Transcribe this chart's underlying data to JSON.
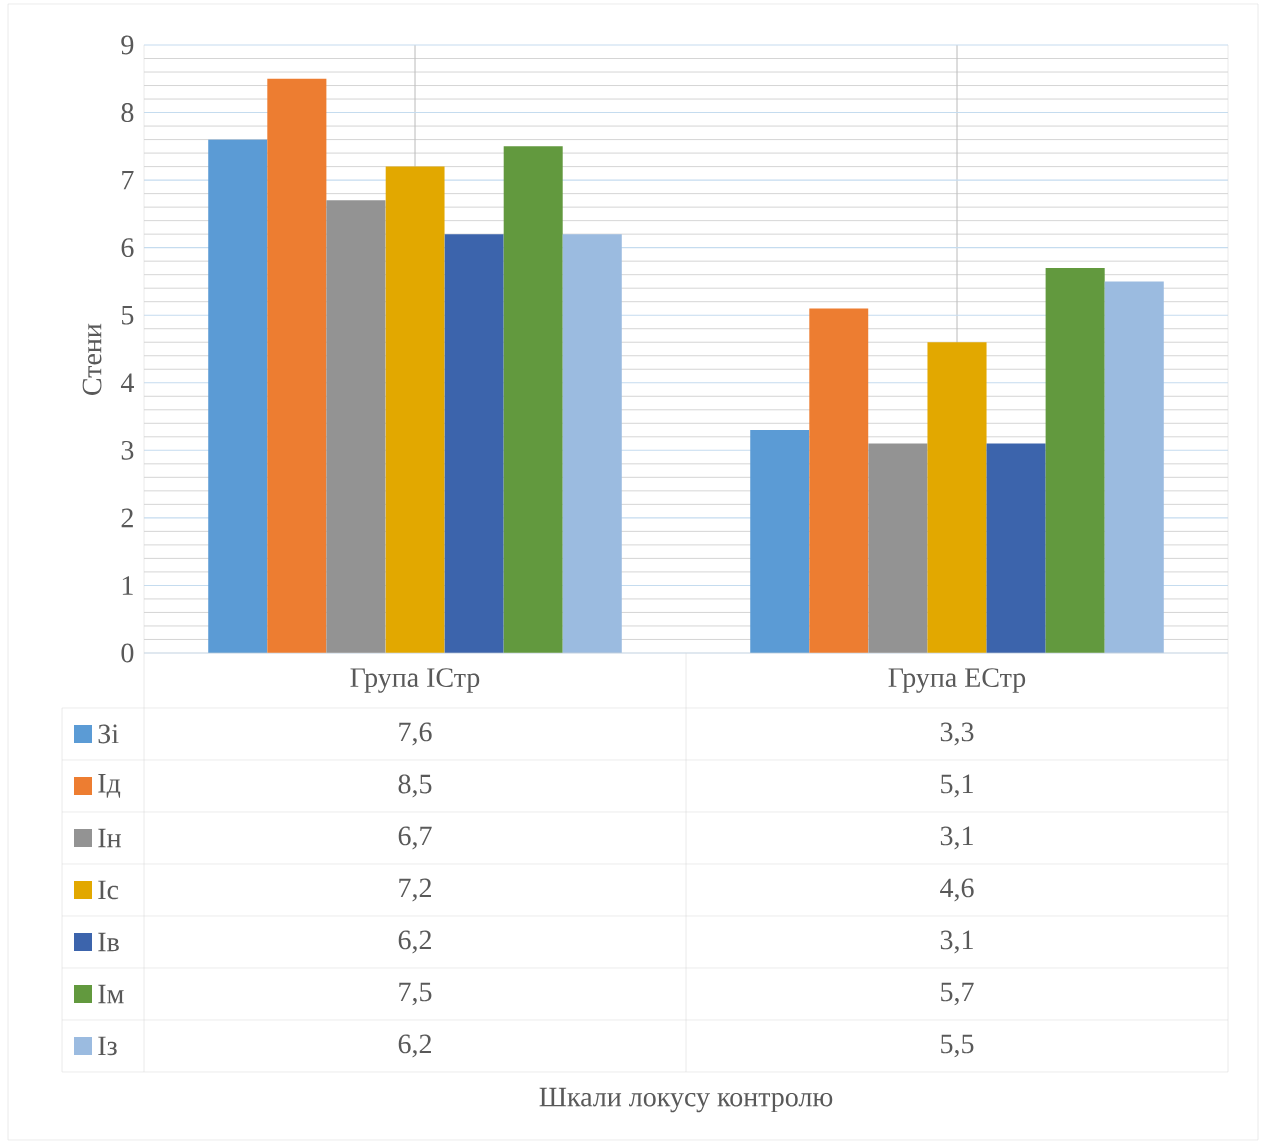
{
  "chart_data": {
    "type": "bar",
    "annotations": [
      "Шкали локусу контролю"
    ],
    "ylabel": "Стени",
    "categories": [
      "Група ІСтр",
      "Група ЕСтр"
    ],
    "series": [
      {
        "name": "Зі",
        "color": "#5b9bd5",
        "values": [
          7.6,
          3.3
        ],
        "value_labels": [
          "7,6",
          "3,3"
        ]
      },
      {
        "name": "Ід",
        "color": "#ed7d31",
        "values": [
          8.5,
          5.1
        ],
        "value_labels": [
          "8,5",
          "5,1"
        ]
      },
      {
        "name": "Ін",
        "color": "#939393",
        "values": [
          6.7,
          3.1
        ],
        "value_labels": [
          "6,7",
          "3,1"
        ]
      },
      {
        "name": "Іс",
        "color": "#e2a800",
        "values": [
          7.2,
          4.6
        ],
        "value_labels": [
          "7,2",
          "4,6"
        ]
      },
      {
        "name": "Ів",
        "color": "#3c64ac",
        "values": [
          6.2,
          3.1
        ],
        "value_labels": [
          "6,2",
          "3,1"
        ]
      },
      {
        "name": "Ім",
        "color": "#62993e",
        "values": [
          7.5,
          5.7
        ],
        "value_labels": [
          "7,5",
          "5,7"
        ]
      },
      {
        "name": "Із",
        "color": "#9bbbe0",
        "values": [
          6.2,
          5.5
        ],
        "value_labels": [
          "6,2",
          "5,5"
        ]
      }
    ],
    "ylim": [
      0,
      9
    ],
    "yticks": [
      0,
      1,
      2,
      3,
      4,
      5,
      6,
      7,
      8,
      9
    ],
    "grid": true,
    "legend": "bottom"
  }
}
